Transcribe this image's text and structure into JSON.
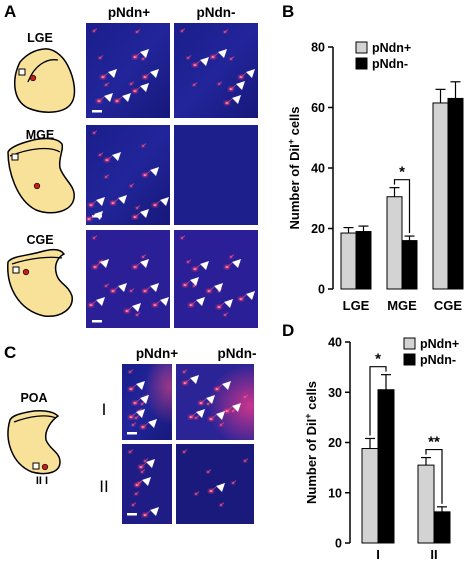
{
  "panels": {
    "A": {
      "letter": "A",
      "col_headers": [
        "pNdn+",
        "pNdn-"
      ],
      "rows": [
        {
          "label": "LGE",
          "plus_arrows": 6,
          "minus_arrows": 5
        },
        {
          "label": "MGE",
          "plus_arrows": 7,
          "minus_arrows": 0
        },
        {
          "label": "CGE",
          "plus_arrows": 7,
          "minus_arrows": 7
        }
      ]
    },
    "C": {
      "letter": "C",
      "col_headers": [
        "pNdn+",
        "pNdn-"
      ],
      "region_label": "POA",
      "rows": [
        {
          "label": "I",
          "plus_arrows": 4,
          "minus_arrows": 6
        },
        {
          "label": "II",
          "plus_arrows": 3,
          "minus_arrows": 1
        }
      ],
      "site_labels": "II I"
    },
    "B": {
      "letter": "B"
    },
    "D": {
      "letter": "D"
    }
  },
  "chart_data": [
    {
      "panel": "B",
      "type": "bar",
      "categories": [
        "LGE",
        "MGE",
        "CGE"
      ],
      "ylabel_prefix": "Number of DiI",
      "ylabel_sup": "+",
      "ylabel_suffix": " cells",
      "ylim": [
        0,
        80
      ],
      "yticks": [
        0,
        20,
        40,
        60,
        80
      ],
      "legend_placement": "top-left",
      "series": [
        {
          "name": "pNdn+",
          "color": "#d3d3d3",
          "values": [
            18.5,
            30.5,
            61.5
          ],
          "errors": [
            1.8,
            3.0,
            4.5
          ]
        },
        {
          "name": "pNdn-",
          "color": "#000000",
          "values": [
            19.0,
            16.0,
            63.0
          ],
          "errors": [
            1.8,
            1.5,
            5.5
          ]
        }
      ],
      "annotations": [
        {
          "category": "MGE",
          "text": "*"
        }
      ]
    },
    {
      "panel": "D",
      "type": "bar",
      "categories": [
        "I",
        "II"
      ],
      "ylabel_prefix": "Number of DiI",
      "ylabel_sup": "+",
      "ylabel_suffix": " cells",
      "ylim": [
        0,
        40
      ],
      "yticks": [
        0,
        10,
        20,
        30,
        40
      ],
      "legend_placement": "top-right",
      "series": [
        {
          "name": "pNdn+",
          "color": "#d3d3d3",
          "values": [
            18.8,
            15.5
          ],
          "errors": [
            2.0,
            1.5
          ]
        },
        {
          "name": "pNdn-",
          "color": "#000000",
          "values": [
            30.5,
            6.2
          ],
          "errors": [
            3.0,
            1.0
          ]
        }
      ],
      "annotations": [
        {
          "category": "I",
          "text": "*"
        },
        {
          "category": "II",
          "text": "**"
        }
      ]
    }
  ]
}
